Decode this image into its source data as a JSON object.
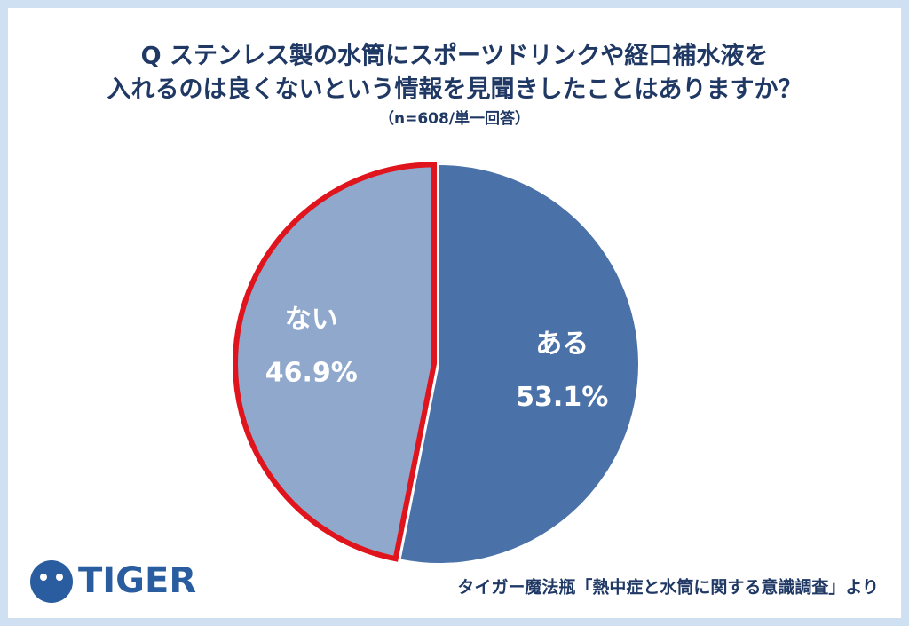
{
  "chart_data": {
    "type": "pie",
    "title": [
      "Q ステンレス製の水筒にスポーツドリンクや経口補水液を",
      "入れるのは良くないという情報を見聞きしたことはありますか？"
    ],
    "subtitle": "（n=608/単一回答）",
    "categories": [
      "ある",
      "ない"
    ],
    "values": [
      53.1,
      46.9
    ],
    "value_labels": [
      "53.1%",
      "46.9%"
    ],
    "colors": [
      "#4a72a8",
      "#8fa8cc"
    ],
    "edgecolors": [
      null,
      "#e0141c"
    ],
    "source": "タイガー魔法瓶「熱中症と水筒に関する意識調査」より",
    "logo": "TIGER"
  }
}
